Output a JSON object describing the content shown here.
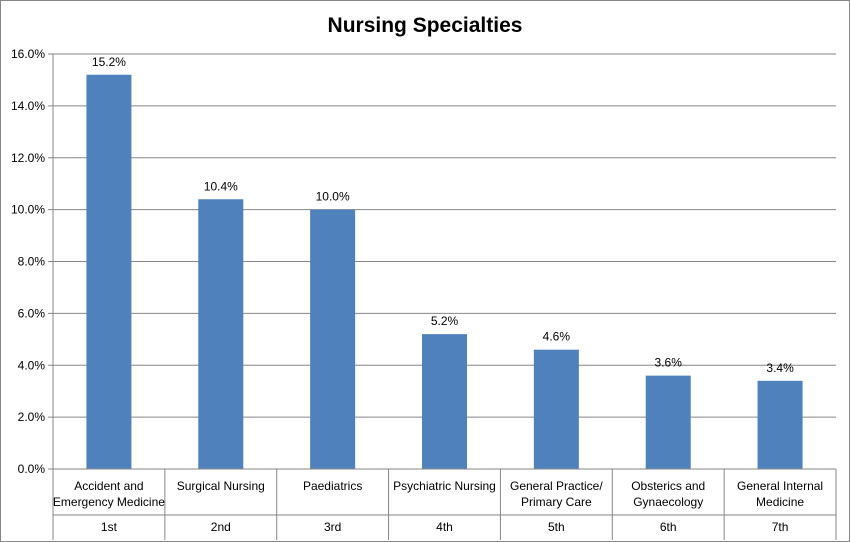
{
  "chart_data": {
    "type": "bar",
    "title": "Nursing Specialties",
    "categories": [
      {
        "name": [
          "Accident and",
          "Emergency Medicine"
        ],
        "rank": "1st"
      },
      {
        "name": [
          "Surgical Nursing"
        ],
        "rank": "2nd"
      },
      {
        "name": [
          "Paediatrics"
        ],
        "rank": "3rd"
      },
      {
        "name": [
          "Psychiatric Nursing"
        ],
        "rank": "4th"
      },
      {
        "name": [
          "General Practice/",
          "Primary Care"
        ],
        "rank": "5th"
      },
      {
        "name": [
          "Obsterics and",
          "Gynaecology"
        ],
        "rank": "6th"
      },
      {
        "name": [
          "General Internal",
          "Medicine"
        ],
        "rank": "7th"
      }
    ],
    "values": [
      15.2,
      10.4,
      10.0,
      5.2,
      4.6,
      3.6,
      3.4
    ],
    "data_labels": [
      "15.2%",
      "10.4%",
      "10.0%",
      "5.2%",
      "4.6%",
      "3.6%",
      "3.4%"
    ],
    "y_ticks": [
      "0.0%",
      "2.0%",
      "4.0%",
      "6.0%",
      "8.0%",
      "10.0%",
      "12.0%",
      "14.0%",
      "16.0%"
    ],
    "ylim": [
      0,
      16
    ],
    "y_step": 2,
    "grid": true,
    "legend": "none",
    "bar_color": "#4f81bd",
    "grid_color": "#868686"
  }
}
